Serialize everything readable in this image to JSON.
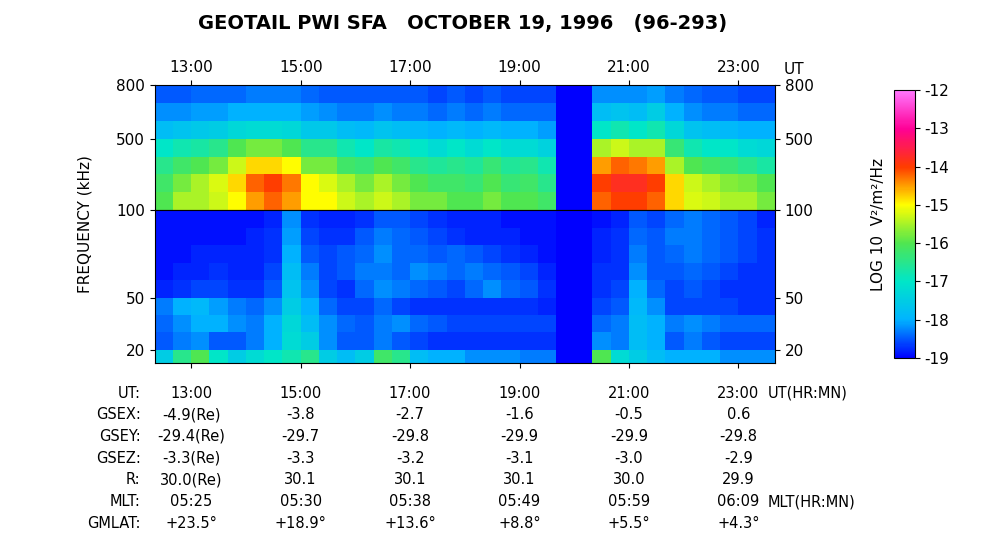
{
  "title": "GEOTAIL PWI SFA   OCTOBER 19, 1996   (96-293)",
  "ylabel": "FREQUENCY (kHz)",
  "colorbar": {
    "label": "LOG 10  V²/m²/Hz",
    "range": [
      -19,
      -12
    ],
    "ticks": [
      -19,
      -18,
      -17,
      -16,
      -15,
      -14,
      -13,
      -12
    ]
  },
  "chart_data": [
    {
      "type": "heatmap",
      "xlabel": "UT",
      "x_edges": [
        12.333,
        12.667,
        13,
        13.333,
        13.667,
        14,
        14.333,
        14.667,
        15,
        15.333,
        15.667,
        16,
        16.333,
        16.667,
        17,
        17.333,
        17.667,
        18,
        18.333,
        18.667,
        19,
        19.333,
        19.667,
        20,
        20.333,
        20.667,
        21,
        21.333,
        21.667,
        22,
        22.333,
        22.667,
        23,
        23.333,
        23.667
      ],
      "y_edges": [
        100,
        200,
        300,
        400,
        500,
        600,
        700,
        800
      ],
      "values": [
        [
          -16,
          -15.5,
          -15.5,
          -15.3,
          -15,
          -14.5,
          -14.2,
          -14.5,
          -15,
          -15,
          -15.3,
          -15.5,
          -15.3,
          -15.5,
          -15.8,
          -15.8,
          -16,
          -16,
          -15.8,
          -16,
          -16,
          -16.2,
          -19,
          -19,
          -14.2,
          -14,
          -14,
          -14.2,
          -14.8,
          -15.2,
          -15.3,
          -15.5,
          -15.5,
          -15.8
        ],
        [
          -16.2,
          -15.8,
          -15.5,
          -15.2,
          -14.8,
          -14.2,
          -14,
          -14.3,
          -15,
          -15.2,
          -15.5,
          -15.8,
          -15.5,
          -15.8,
          -16,
          -16.2,
          -16.2,
          -16.3,
          -16,
          -16.3,
          -16.2,
          -16.5,
          -19,
          -19,
          -14,
          -13.8,
          -13.8,
          -14,
          -14.8,
          -15.3,
          -15.5,
          -15.7,
          -15.8,
          -16
        ],
        [
          -16.5,
          -16.2,
          -16,
          -15.8,
          -15.3,
          -14.8,
          -14.8,
          -15,
          -15.8,
          -15.8,
          -16.2,
          -16.3,
          -16,
          -16.2,
          -16.5,
          -16.6,
          -16.5,
          -16.6,
          -16.3,
          -16.6,
          -16.5,
          -16.8,
          -19,
          -19,
          -14.5,
          -14.2,
          -14.3,
          -14.5,
          -15.5,
          -16,
          -16.2,
          -16.3,
          -16.5,
          -16.7
        ],
        [
          -17,
          -16.8,
          -16.7,
          -16.5,
          -16,
          -15.8,
          -15.8,
          -16,
          -16.5,
          -16.5,
          -16.8,
          -17,
          -16.7,
          -16.8,
          -17,
          -17.2,
          -17,
          -17.2,
          -17,
          -17.2,
          -17.2,
          -17.4,
          -19,
          -19,
          -15.5,
          -15.3,
          -15.5,
          -15.5,
          -16.3,
          -16.8,
          -17,
          -17,
          -17.2,
          -17.3
        ],
        [
          -17.8,
          -17.7,
          -17.6,
          -17.5,
          -17.3,
          -17.2,
          -17.2,
          -17.3,
          -17.6,
          -17.6,
          -17.8,
          -17.9,
          -17.7,
          -17.8,
          -17.9,
          -18,
          -17.9,
          -18,
          -17.9,
          -18,
          -18,
          -18.1,
          -19,
          -19,
          -17,
          -16.8,
          -17,
          -16.8,
          -17.3,
          -17.7,
          -17.8,
          -17.9,
          -18,
          -18
        ],
        [
          -18.2,
          -18.2,
          -18.1,
          -18.1,
          -18,
          -18,
          -18,
          -18,
          -18.1,
          -18.2,
          -18.3,
          -18.3,
          -18.2,
          -18.3,
          -18.3,
          -18.4,
          -18.3,
          -18.4,
          -18.3,
          -18.4,
          -18.4,
          -18.4,
          -19,
          -19,
          -17.8,
          -17.7,
          -17.8,
          -17.5,
          -18,
          -18.2,
          -18.3,
          -18.3,
          -18.4,
          -18.4
        ],
        [
          -18.5,
          -18.5,
          -18.4,
          -18.4,
          -18.4,
          -18.3,
          -18.3,
          -18.3,
          -18.4,
          -18.5,
          -18.5,
          -18.5,
          -18.5,
          -18.5,
          -18.5,
          -18.6,
          -18.5,
          -18.6,
          -18.5,
          -18.6,
          -18.6,
          -18.6,
          -19,
          -19,
          -18.2,
          -18.2,
          -18.2,
          -18.1,
          -18.3,
          -18.4,
          -18.5,
          -18.5,
          -18.6,
          -18.6
        ]
      ],
      "xlim": [
        12.333,
        23.667
      ],
      "xticks": [
        {
          "value": 13,
          "label": "13:00"
        },
        {
          "value": 15,
          "label": "15:00"
        },
        {
          "value": 17,
          "label": "17:00"
        },
        {
          "value": 19,
          "label": "19:00"
        },
        {
          "value": 21,
          "label": "21:00"
        },
        {
          "value": 23,
          "label": "23:00"
        }
      ],
      "ylim": [
        100,
        800
      ],
      "yticks": [
        500,
        800
      ]
    },
    {
      "type": "heatmap",
      "tick_labels": "y",
      "x_edges": [
        12.333,
        12.667,
        13,
        13.333,
        13.667,
        14,
        14.333,
        14.667,
        15,
        15.333,
        15.667,
        16,
        16.333,
        16.667,
        17,
        17.333,
        17.667,
        18,
        18.333,
        18.667,
        19,
        19.333,
        19.667,
        20,
        20.333,
        20.667,
        21,
        21.333,
        21.667,
        22,
        22.333,
        22.667,
        23,
        23.333,
        23.667
      ],
      "y_edges": [
        12.5,
        20,
        30,
        40,
        50,
        60,
        70,
        80,
        90,
        100
      ],
      "values": [
        [
          -17.5,
          -16.5,
          -16,
          -17,
          -17.5,
          -17.2,
          -17,
          -16.8,
          -16.5,
          -17.5,
          -17.8,
          -17.5,
          -16.2,
          -16.5,
          -17.8,
          -18,
          -18,
          -18.2,
          -18.2,
          -18.2,
          -18.3,
          -18.3,
          -19,
          -19,
          -16,
          -17.2,
          -17.5,
          -17.8,
          -18,
          -18,
          -18,
          -18.2,
          -18.2,
          -18.2
        ],
        [
          -18.5,
          -18.3,
          -18.2,
          -18.5,
          -18.5,
          -18.3,
          -18,
          -17.2,
          -17.5,
          -18.2,
          -18.5,
          -18.5,
          -18.3,
          -18.5,
          -18.6,
          -18.7,
          -18.7,
          -18.7,
          -18.7,
          -18.7,
          -18.7,
          -18.7,
          -19,
          -19,
          -18.2,
          -18.3,
          -17.8,
          -18,
          -18.5,
          -18.3,
          -18.5,
          -18.6,
          -18.6,
          -18.6
        ],
        [
          -18.4,
          -18.2,
          -18,
          -18,
          -18.2,
          -18.3,
          -18,
          -17.3,
          -17.8,
          -18.2,
          -18.4,
          -18.5,
          -18.3,
          -18.2,
          -18.4,
          -18.5,
          -18.6,
          -18.6,
          -18.6,
          -18.6,
          -18.6,
          -18.6,
          -19,
          -19,
          -18.4,
          -18.3,
          -17.8,
          -18,
          -18.3,
          -18.2,
          -18.3,
          -18.4,
          -18.4,
          -18.4
        ],
        [
          -18.3,
          -18,
          -17.9,
          -18.1,
          -18.3,
          -18.4,
          -18.2,
          -17.5,
          -18,
          -18.4,
          -18.6,
          -18.6,
          -18.4,
          -18.6,
          -18.7,
          -18.7,
          -18.7,
          -18.7,
          -18.7,
          -18.7,
          -18.7,
          -18.8,
          -19,
          -19,
          -18.6,
          -18.5,
          -17.9,
          -18.2,
          -18.6,
          -18.6,
          -18.6,
          -18.6,
          -18.7,
          -18.7
        ],
        [
          -18.8,
          -18.7,
          -18.6,
          -18.6,
          -18.7,
          -18.7,
          -18.5,
          -17.7,
          -18.2,
          -18.6,
          -18.7,
          -18.4,
          -18.2,
          -18.3,
          -18.4,
          -18.5,
          -18.6,
          -18.4,
          -18.2,
          -18.4,
          -18.5,
          -18.7,
          -19,
          -19,
          -18.7,
          -18.6,
          -18,
          -18.4,
          -18.6,
          -18.5,
          -18.6,
          -18.7,
          -18.7,
          -18.7
        ],
        [
          -18.9,
          -18.8,
          -18.8,
          -18.7,
          -18.8,
          -18.8,
          -18.6,
          -17.8,
          -18.3,
          -18.6,
          -18.5,
          -18.3,
          -18.3,
          -18.4,
          -18.2,
          -18.3,
          -18.4,
          -18.3,
          -18.4,
          -18.5,
          -18.6,
          -18.8,
          -19,
          -19,
          -18.7,
          -18.7,
          -18.2,
          -18.5,
          -18.5,
          -18.4,
          -18.5,
          -18.6,
          -18.7,
          -18.7
        ],
        [
          -18.9,
          -18.9,
          -18.8,
          -18.8,
          -18.8,
          -18.8,
          -18.7,
          -18,
          -18.5,
          -18.6,
          -18.5,
          -18.4,
          -18.2,
          -18.4,
          -18.4,
          -18.5,
          -18.4,
          -18.5,
          -18.6,
          -18.7,
          -18.8,
          -18.9,
          -19,
          -19,
          -18.8,
          -18.7,
          -18.3,
          -18.5,
          -18.4,
          -18.3,
          -18.4,
          -18.5,
          -18.6,
          -18.7
        ],
        [
          -18.9,
          -18.9,
          -18.9,
          -18.9,
          -18.9,
          -18.8,
          -18.7,
          -18.1,
          -18.6,
          -18.7,
          -18.7,
          -18.5,
          -18.3,
          -18.4,
          -18.5,
          -18.6,
          -18.7,
          -18.8,
          -18.8,
          -18.8,
          -18.9,
          -18.9,
          -19,
          -19,
          -18.8,
          -18.7,
          -18.4,
          -18.5,
          -18.3,
          -18.3,
          -18.4,
          -18.5,
          -18.6,
          -18.7
        ],
        [
          -18.9,
          -18.9,
          -18.9,
          -18.9,
          -18.9,
          -18.9,
          -18.8,
          -18.2,
          -18.7,
          -18.8,
          -18.8,
          -18.7,
          -18.5,
          -18.5,
          -18.6,
          -18.7,
          -18.8,
          -18.8,
          -18.8,
          -18.9,
          -18.9,
          -18.9,
          -19,
          -19,
          -18.9,
          -18.8,
          -18.5,
          -18.6,
          -18.4,
          -18.3,
          -18.4,
          -18.5,
          -18.6,
          -18.8
        ]
      ],
      "xlim": [
        12.333,
        23.667
      ],
      "xticks": [
        13,
        15,
        17,
        19,
        21,
        23
      ],
      "ylim": [
        12.5,
        100
      ],
      "yticks": [
        20,
        50,
        100
      ]
    }
  ],
  "ephemeris": [
    {
      "label": "UT:",
      "values": [
        "13:00",
        "15:00",
        "17:00",
        "19:00",
        "21:00",
        "23:00"
      ],
      "unit": "UT(HR:MN)"
    },
    {
      "label": "GSEX:",
      "values": [
        "-4.9(Re)",
        "-3.8",
        "-2.7",
        "-1.6",
        "-0.5",
        "0.6"
      ]
    },
    {
      "label": "GSEY:",
      "values": [
        "-29.4(Re)",
        "-29.7",
        "-29.8",
        "-29.9",
        "-29.9",
        "-29.8"
      ]
    },
    {
      "label": "GSEZ:",
      "values": [
        "-3.3(Re)",
        "-3.3",
        "-3.2",
        "-3.1",
        "-3.0",
        "-2.9"
      ]
    },
    {
      "label": "R:",
      "values": [
        "30.0(Re)",
        "30.1",
        "30.1",
        "30.1",
        "30.0",
        "29.9"
      ]
    },
    {
      "label": "MLT:",
      "values": [
        "05:25",
        "05:30",
        "05:38",
        "05:49",
        "05:59",
        "06:09"
      ],
      "unit": "MLT(HR:MN)"
    },
    {
      "label": "GMLAT:",
      "values": [
        "+23.5°",
        "+18.9°",
        "+13.6°",
        "+8.8°",
        "+5.5°",
        "+4.3°"
      ]
    }
  ]
}
